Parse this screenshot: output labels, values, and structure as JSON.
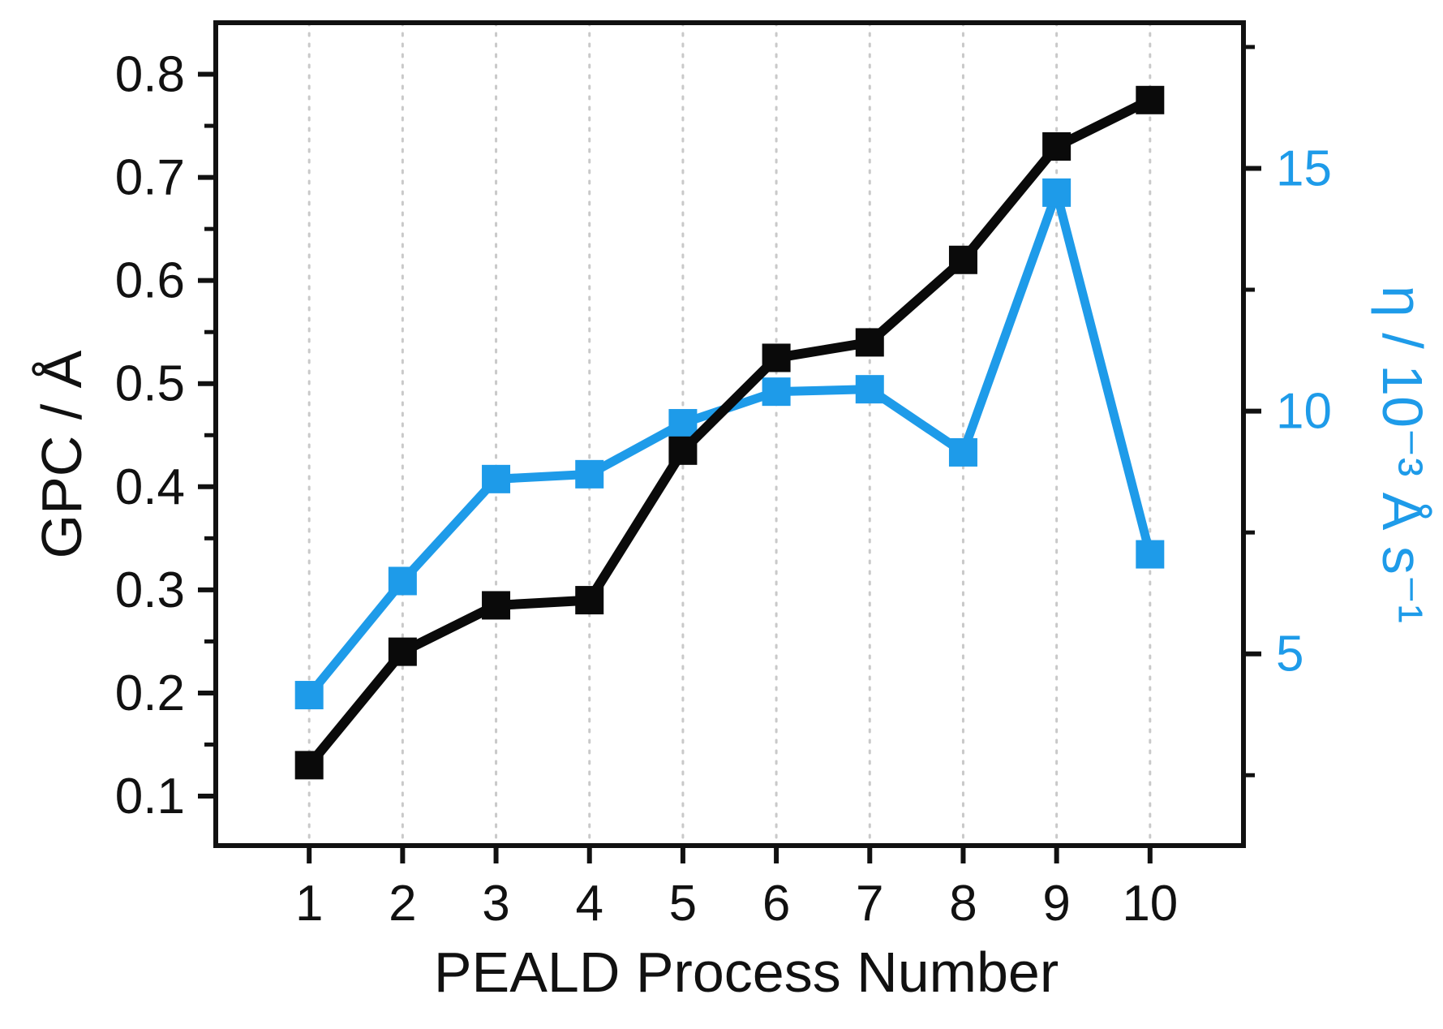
{
  "figure": {
    "background": "#ffffff"
  },
  "chart_data": {
    "type": "line",
    "title": "",
    "xlabel": "PEALD Process Number",
    "ylabel_left": "GPC / Å",
    "ylabel_right": "η / 10⁻³ Å s⁻¹",
    "x": [
      1,
      2,
      3,
      4,
      5,
      6,
      7,
      8,
      9,
      10
    ],
    "x_tick_labels": [
      "1",
      "2",
      "3",
      "4",
      "5",
      "6",
      "7",
      "8",
      "9",
      "10"
    ],
    "series": [
      {
        "name": "eta",
        "label": "η / 10⁻³ Å s⁻¹",
        "axis": "right",
        "color": "#1E9BE9",
        "marker": "square",
        "values": [
          4.15,
          6.5,
          8.6,
          8.7,
          9.75,
          10.4,
          10.45,
          9.15,
          14.5,
          7.05
        ]
      },
      {
        "name": "GPC",
        "label": "GPC / Å",
        "axis": "left",
        "color": "#0a0a0a",
        "marker": "square",
        "values": [
          0.13,
          0.24,
          0.285,
          0.29,
          0.435,
          0.525,
          0.54,
          0.62,
          0.73,
          0.775
        ]
      }
    ],
    "left_tick_values": [
      0.1,
      0.2,
      0.3,
      0.4,
      0.5,
      0.6,
      0.7,
      0.8
    ],
    "left_tick_labels": [
      "0.1",
      "0.2",
      "0.3",
      "0.4",
      "0.5",
      "0.6",
      "0.7",
      "0.8"
    ],
    "left_minor_ticks": [
      0.15,
      0.25,
      0.35,
      0.45,
      0.55,
      0.65,
      0.75
    ],
    "right_tick_values": [
      5,
      10,
      15
    ],
    "right_tick_labels": [
      "5",
      "10",
      "15"
    ],
    "right_minor_ticks": [
      2.5,
      7.5,
      12.5,
      17.5
    ],
    "xlim": [
      0,
      11
    ],
    "ylim_left": [
      0.052,
      0.85
    ],
    "ylim_right": [
      1.05,
      18.0
    ],
    "grid": {
      "axis": "x",
      "style": "dotted",
      "color": "#c9c9c9"
    },
    "axis_color": "#111111"
  }
}
